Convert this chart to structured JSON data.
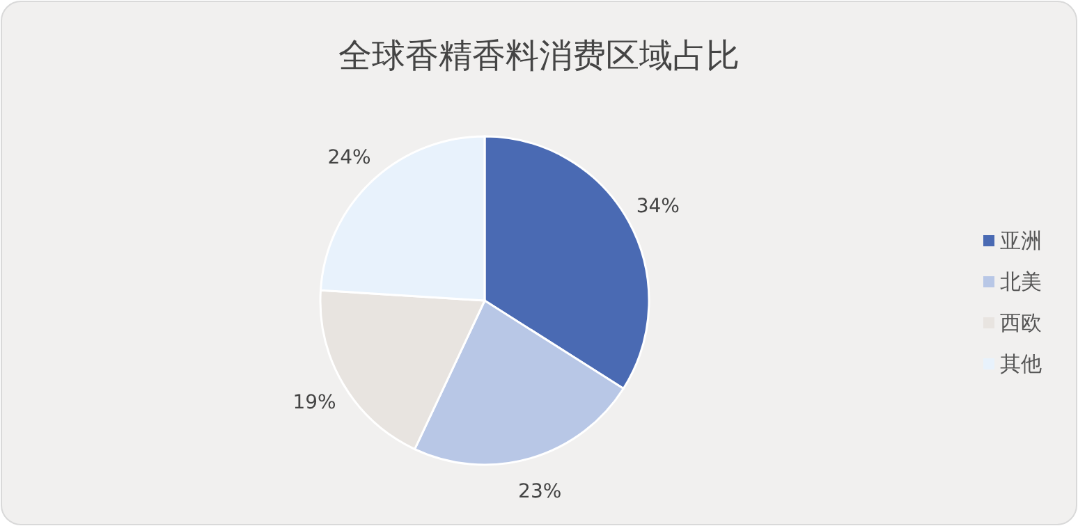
{
  "chart_data": {
    "type": "pie",
    "title": "全球香精香料消费区域占比",
    "categories": [
      "亚洲",
      "北美",
      "西欧",
      "其他"
    ],
    "values": [
      34,
      23,
      19,
      24
    ],
    "colors": [
      "#4a6ab3",
      "#b8c7e6",
      "#e8e4e0",
      "#e8f2fc"
    ],
    "value_labels": [
      "34%",
      "23%",
      "19%",
      "24%"
    ],
    "legend": "right"
  }
}
